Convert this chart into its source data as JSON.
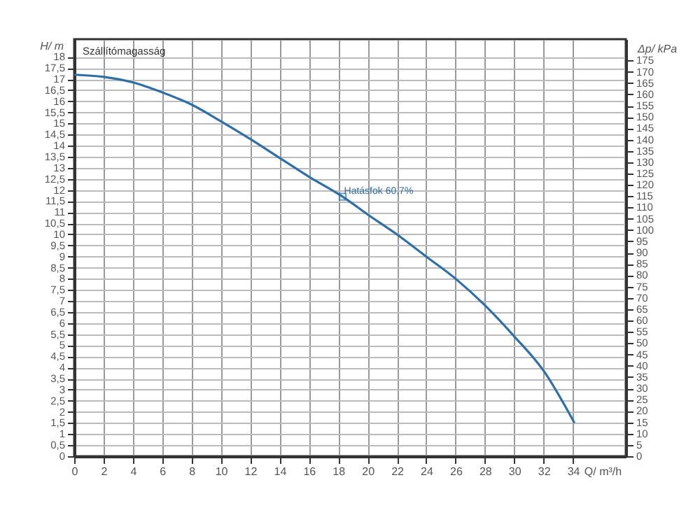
{
  "chart_data": {
    "type": "line",
    "title": "Szállítómagasság",
    "xlabel": "Q/ m³/h",
    "ylabel": "H/ m",
    "y2label": "Δp/ kPa",
    "x": [
      0,
      2,
      4,
      6,
      8,
      10,
      12,
      14,
      16,
      18.3,
      20,
      22,
      24,
      26,
      28,
      30,
      32,
      34.1
    ],
    "series": [
      {
        "color": "#2e6fa7",
        "values": [
          17.2,
          17.1,
          16.85,
          16.4,
          15.85,
          15.1,
          14.3,
          13.45,
          12.6,
          11.7,
          10.9,
          10.0,
          9.0,
          8.0,
          6.8,
          5.4,
          3.85,
          1.5
        ]
      }
    ],
    "annotations": [
      {
        "text": "Hatásfok 60,7%",
        "x": 18.3,
        "y": 11.7
      }
    ],
    "xlim": [
      0,
      37.6
    ],
    "ylim": [
      0,
      18.8
    ],
    "y2lim": [
      0,
      184.4
    ],
    "xticks": [
      0,
      2,
      4,
      6,
      8,
      10,
      12,
      14,
      16,
      18,
      20,
      22,
      24,
      26,
      28,
      30,
      32,
      34
    ],
    "yticks": [
      0,
      {
        "value": 0.5,
        "label": "0,5"
      },
      1,
      {
        "value": 1.5,
        "label": "1,5"
      },
      2,
      {
        "value": 2.5,
        "label": "2,5"
      },
      3,
      {
        "value": 3.5,
        "label": "3,5"
      },
      4,
      {
        "value": 4.5,
        "label": "4,5"
      },
      5,
      {
        "value": 5.5,
        "label": "5,5"
      },
      6,
      {
        "value": 6.5,
        "label": "6,5"
      },
      7,
      {
        "value": 7.5,
        "label": "7,5"
      },
      8,
      {
        "value": 8.5,
        "label": "8,5"
      },
      9,
      {
        "value": 9.5,
        "label": "9,5"
      },
      10,
      {
        "value": 10.5,
        "label": "10,5"
      },
      11,
      {
        "value": 11.5,
        "label": "11,5"
      },
      12,
      {
        "value": 12.5,
        "label": "12,5"
      },
      13,
      {
        "value": 13.5,
        "label": "13,5"
      },
      14,
      {
        "value": 14.5,
        "label": "14,5"
      },
      15,
      {
        "value": 15.5,
        "label": "15,5"
      },
      16,
      {
        "value": 16.5,
        "label": "16,5"
      },
      17,
      {
        "value": 17.5,
        "label": "17,5"
      },
      18
    ],
    "y2ticks": [
      0,
      5,
      10,
      15,
      20,
      25,
      30,
      35,
      40,
      45,
      50,
      55,
      60,
      65,
      70,
      75,
      80,
      85,
      90,
      95,
      100,
      105,
      110,
      115,
      120,
      125,
      130,
      135,
      140,
      145,
      150,
      155,
      160,
      165,
      170,
      175
    ],
    "grid": true,
    "marker": "none",
    "line_style": "solid"
  }
}
